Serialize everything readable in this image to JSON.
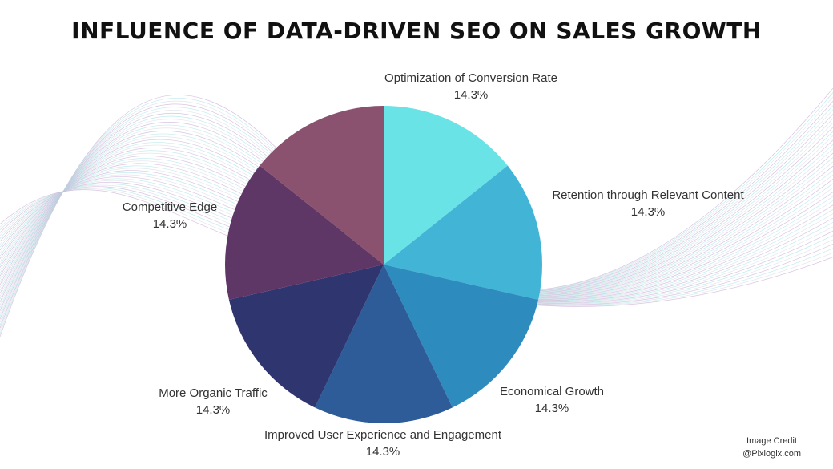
{
  "chart_data": {
    "type": "pie",
    "title": "INFLUENCE OF DATA-DRIVEN SEO ON SALES GROWTH",
    "slices": [
      {
        "label": "Optimization of Conversion Rate",
        "value": 14.3,
        "display": "14.3%",
        "color": "#6ae3e7"
      },
      {
        "label": "Retention through Relevant Content",
        "value": 14.3,
        "display": "14.3%",
        "color": "#42b5d6"
      },
      {
        "label": "Economical Growth",
        "value": 14.3,
        "display": "14.3%",
        "color": "#2e8bbd"
      },
      {
        "label": "Improved User Experience and Engagement",
        "value": 14.3,
        "display": "14.3%",
        "color": "#2d5c98"
      },
      {
        "label": "More Organic Traffic",
        "value": 14.3,
        "display": "14.3%",
        "color": "#2f356f"
      },
      {
        "label": "Competitive Edge",
        "value": 14.3,
        "display": "14.3%",
        "color": "#5e3766"
      },
      {
        "label": "",
        "value": 14.3,
        "display": "",
        "color": "#8a526f"
      }
    ],
    "start": "top",
    "direction": "clockwise"
  },
  "credit": {
    "line1": "Image Credit",
    "line2": "@Pixlogix.com"
  }
}
